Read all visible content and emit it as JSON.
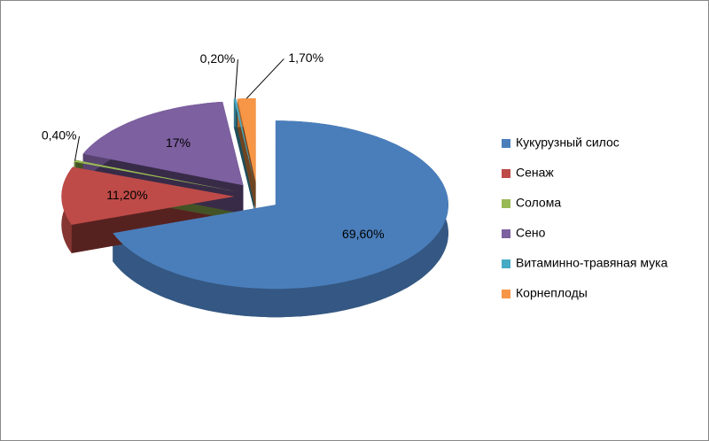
{
  "chart_data": {
    "type": "pie3d",
    "categories": [
      "Кукурузный силос",
      "Сенаж",
      "Солома",
      "Сено",
      "Витаминно-травяная мука",
      "Корнеплоды"
    ],
    "values": [
      69.6,
      11.2,
      0.4,
      17,
      0.2,
      1.7
    ],
    "value_labels": [
      "69,60%",
      "11,20%",
      "0,40%",
      "17%",
      "0,20%",
      "1,70%"
    ],
    "colors": [
      "#4a7ebb",
      "#be4b48",
      "#98b954",
      "#7d60a0",
      "#46aac5",
      "#f79646"
    ],
    "legend": "right"
  }
}
